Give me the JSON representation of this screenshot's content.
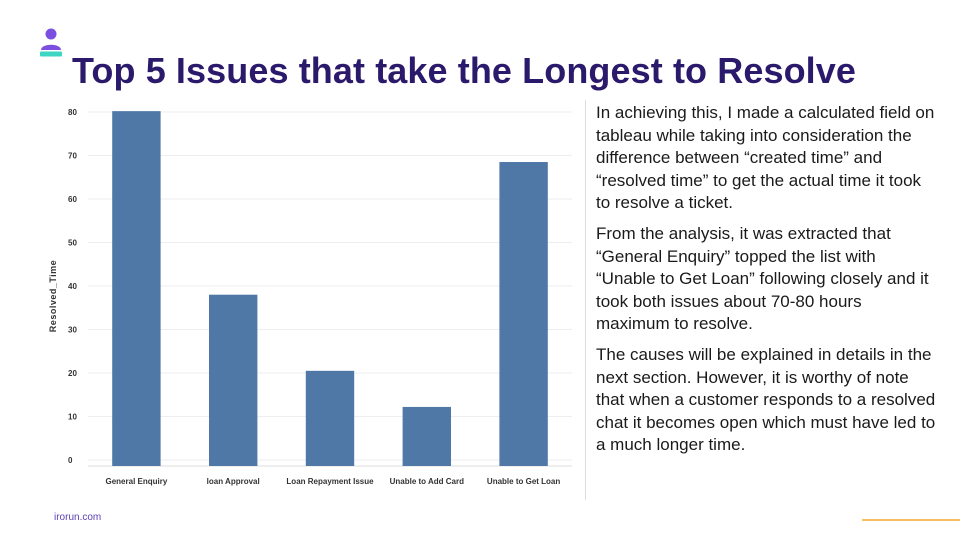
{
  "title": "Top 5 Issues that take the Longest to Resolve",
  "paragraphs": [
    "In achieving this, I made a calculated field on tableau while taking into consideration the difference between “created time” and “resolved time” to get the actual time it took to resolve a ticket.",
    "From the analysis, it was extracted that “General Enquiry” topped the list with “Unable to Get Loan” following closely and it took both issues about 70-80 hours maximum to resolve.",
    "The causes will be explained in details in the next section. However, it is worthy of note that when a customer responds to a resolved chat it becomes open which must have led to a much longer time."
  ],
  "footer": {
    "site": "irorun.com"
  },
  "colors": {
    "title": "#2b1a6b",
    "bar": "#4f78a7",
    "accent": "#f5c064",
    "logo_head": "#7b4fe0",
    "logo_base": "#3dd6c4"
  },
  "icons": {
    "logo": "user-icon"
  },
  "chart_data": {
    "type": "bar",
    "title": "",
    "xlabel": "",
    "ylabel": "Resolved_Time",
    "categories": [
      "General Enquiry",
      "loan Approval",
      "Loan Repayment Issue",
      "Unable to Add Card",
      "Unable to Get Loan"
    ],
    "values": [
      80.2,
      38,
      20.5,
      12.2,
      68.5
    ],
    "ylim": [
      0,
      80
    ],
    "yticks": [
      0,
      10,
      20,
      30,
      40,
      50,
      60,
      70,
      80
    ],
    "grid": true,
    "legend": "none"
  }
}
